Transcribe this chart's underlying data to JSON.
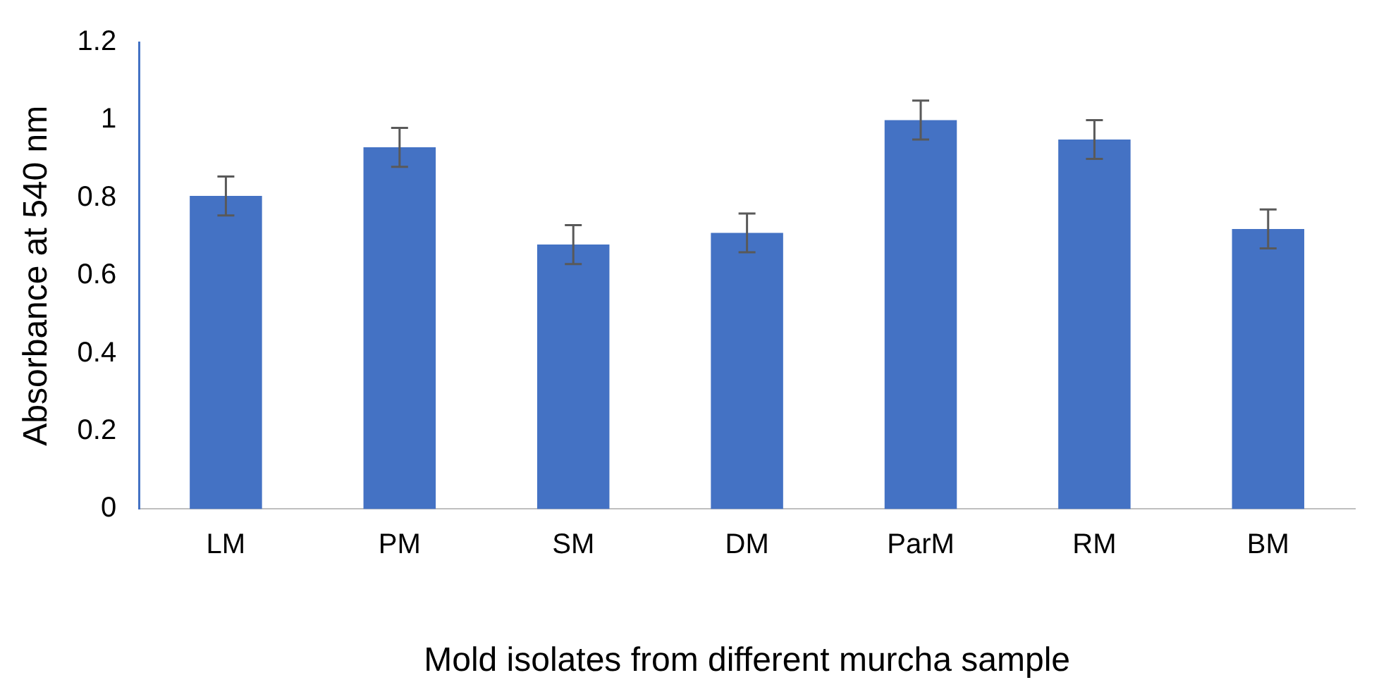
{
  "chart_data": {
    "type": "bar",
    "xlabel": "Mold isolates from different murcha sample",
    "ylabel": "Absorbance at 540 nm",
    "categories": [
      "LM",
      "PM",
      "SM",
      "DM",
      "ParM",
      "RM",
      "BM"
    ],
    "values": [
      0.805,
      0.93,
      0.68,
      0.71,
      1.0,
      0.95,
      0.72
    ],
    "errors": [
      0.05,
      0.05,
      0.05,
      0.05,
      0.05,
      0.05,
      0.05
    ],
    "color": "#4472c4",
    "ylim": [
      0,
      1.2
    ],
    "yticks": [
      0,
      0.2,
      0.4,
      0.6,
      0.8,
      1,
      1.2
    ],
    "grid": false,
    "legend": false
  }
}
